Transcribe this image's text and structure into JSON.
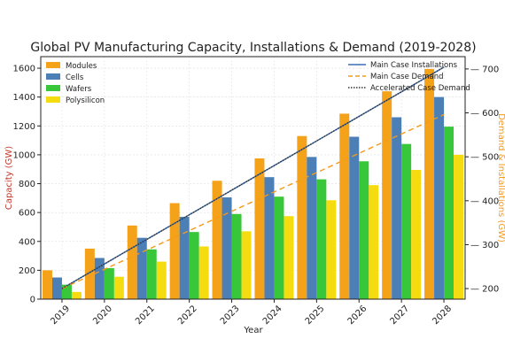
{
  "chart_data": {
    "type": "bar",
    "title": "Global PV Manufacturing Capacity, Installations & Demand (2019-2028)",
    "xlabel": "Year",
    "ylabel": "Capacity (GW)",
    "y2label": "Demand & Installations (GW)",
    "categories": [
      "2019",
      "2020",
      "2021",
      "2022",
      "2023",
      "2024",
      "2025",
      "2026",
      "2027",
      "2028"
    ],
    "ylim": [
      0,
      1680
    ],
    "y2lim": [
      176,
      728
    ],
    "yticks": [
      0,
      200,
      400,
      600,
      800,
      1000,
      1200,
      1400,
      1600
    ],
    "y2ticks": [
      200,
      300,
      400,
      500,
      600,
      700
    ],
    "grid": true,
    "legend_left_position": "top-left",
    "legend_right_position": "top-right",
    "bar_series": [
      {
        "name": "Modules",
        "color": "#f5a21b",
        "values": [
          200,
          350,
          510,
          665,
          820,
          975,
          1130,
          1285,
          1440,
          1595
        ]
      },
      {
        "name": "Cells",
        "color": "#4b7fb5",
        "values": [
          150,
          285,
          425,
          570,
          705,
          845,
          985,
          1125,
          1260,
          1400
        ]
      },
      {
        "name": "Wafers",
        "color": "#38c738",
        "values": [
          100,
          215,
          345,
          465,
          590,
          710,
          830,
          955,
          1075,
          1195
        ]
      },
      {
        "name": "Polysilicon",
        "color": "#f5dc10",
        "values": [
          50,
          155,
          260,
          365,
          470,
          575,
          685,
          790,
          895,
          1000
        ]
      }
    ],
    "line_series": [
      {
        "name": "Main Case Installations",
        "color": "#3b6fb6",
        "style": "solid",
        "values": [
          200,
          256,
          312,
          368,
          424,
          480,
          536,
          592,
          648,
          704
        ]
      },
      {
        "name": "Main Case Demand",
        "color": "#f59a1b",
        "style": "dashed",
        "values": [
          200,
          244,
          288,
          332,
          376,
          420,
          464,
          508,
          552,
          596
        ]
      },
      {
        "name": "Accelerated Case Demand",
        "color": "#333333",
        "style": "dotted",
        "values": [
          200,
          256,
          312,
          368,
          424,
          480,
          536,
          592,
          648,
          704
        ]
      }
    ]
  }
}
